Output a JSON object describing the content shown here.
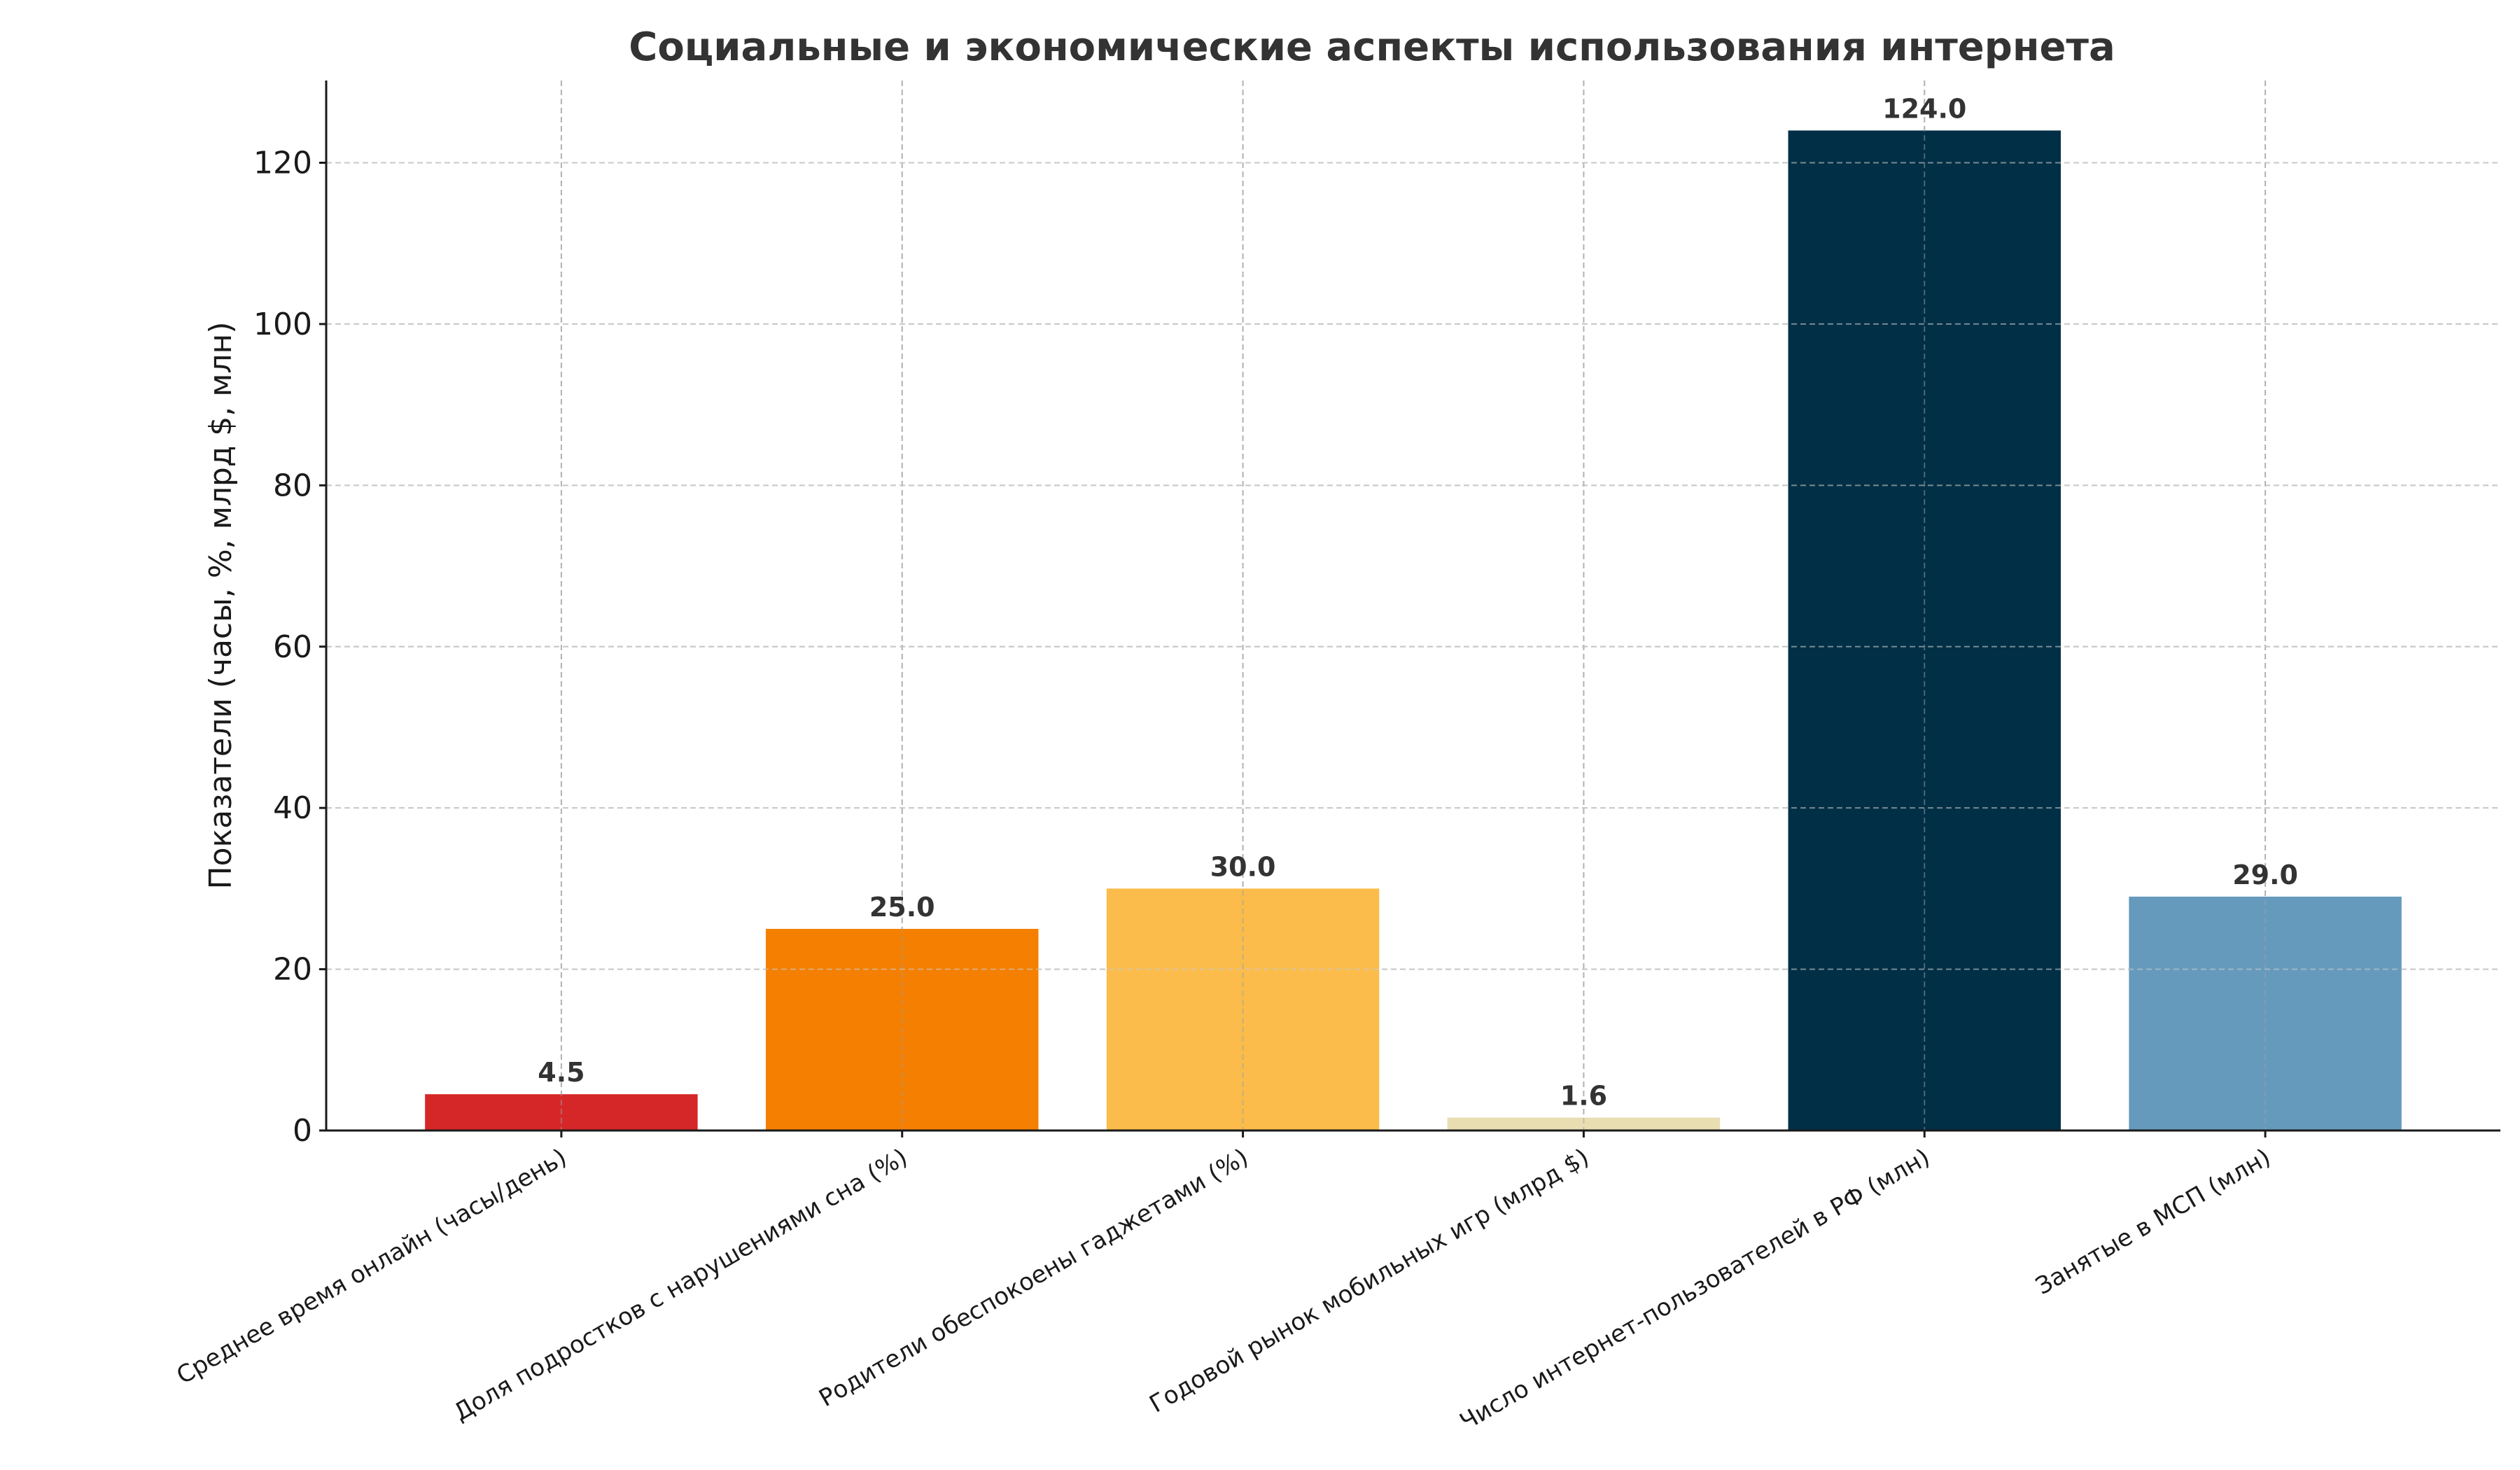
{
  "chart_data": {
    "type": "bar",
    "title": "Социальные и экономические аспекты использования интернета",
    "xlabel": "",
    "ylabel": "Показатели (часы, %, млрд $, млн)",
    "categories": [
      "Среднее время онлайн (часы/день)",
      "Доля подростков с нарушениями сна (%)",
      "Родители обеспокоены гаджетами (%)",
      "Годовой рынок мобильных игр (млрд $)",
      "Число интернет-пользователей в РФ (млн)",
      "Занятые в МСП (млн)"
    ],
    "values": [
      4.5,
      25.0,
      30.0,
      1.6,
      124.0,
      29.0
    ],
    "value_labels": [
      "4.5",
      "25.0",
      "30.0",
      "1.6",
      "124.0",
      "29.0"
    ],
    "colors": [
      "#d62728",
      "#f57f00",
      "#fbbc4b",
      "#e8deb2",
      "#002f46",
      "#659abd"
    ],
    "ylim": [
      0,
      130.2
    ],
    "yticks": [
      0,
      20,
      40,
      60,
      80,
      100,
      120
    ],
    "grid": true,
    "legend": "none"
  }
}
